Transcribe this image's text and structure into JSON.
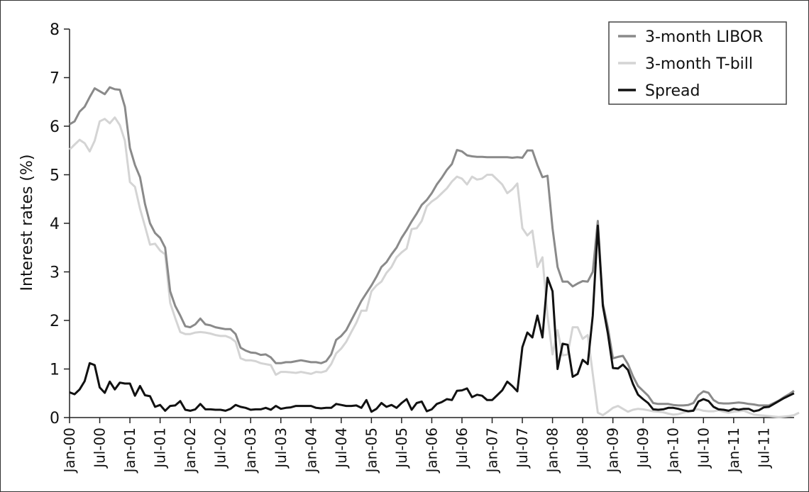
{
  "chart_data": {
    "type": "line",
    "title": "",
    "xlabel": "",
    "ylabel": "Interest rates (%)",
    "ylim": [
      0,
      8
    ],
    "yticks": [
      0,
      1,
      2,
      3,
      4,
      5,
      6,
      7,
      8
    ],
    "x_start": "Jan-00",
    "x_end": "Dec-11",
    "x_tick_labels": [
      "Jan-00",
      "Jul-00",
      "Jan-01",
      "Jul-01",
      "Jan-02",
      "Jul-02",
      "Jan-03",
      "Jul-03",
      "Jan-04",
      "Jul-04",
      "Jan-05",
      "Jul-05",
      "Jan-06",
      "Jul-06",
      "Jan-07",
      "Jul-07",
      "Jan-08",
      "Jul-08",
      "Jan-09",
      "Jul-09",
      "Jan-10",
      "Jul-10",
      "Jan-11",
      "Jul-11"
    ],
    "grid": false,
    "legend_position": "top-right",
    "series": [
      {
        "name": "3-month LIBOR",
        "color": "#8a8a8a",
        "values": [
          6.04,
          6.1,
          6.3,
          6.4,
          6.6,
          6.78,
          6.72,
          6.66,
          6.8,
          6.76,
          6.75,
          6.4,
          5.55,
          5.2,
          4.95,
          4.4,
          4.0,
          3.8,
          3.7,
          3.5,
          2.6,
          2.3,
          2.1,
          1.88,
          1.86,
          1.92,
          2.04,
          1.92,
          1.9,
          1.86,
          1.84,
          1.82,
          1.82,
          1.72,
          1.44,
          1.38,
          1.34,
          1.33,
          1.29,
          1.3,
          1.24,
          1.12,
          1.12,
          1.14,
          1.14,
          1.16,
          1.18,
          1.16,
          1.14,
          1.14,
          1.12,
          1.16,
          1.3,
          1.6,
          1.68,
          1.8,
          2.0,
          2.2,
          2.4,
          2.56,
          2.72,
          2.9,
          3.1,
          3.2,
          3.36,
          3.5,
          3.7,
          3.86,
          4.04,
          4.2,
          4.38,
          4.48,
          4.62,
          4.8,
          4.94,
          5.1,
          5.22,
          5.51,
          5.48,
          5.4,
          5.38,
          5.37,
          5.37,
          5.36,
          5.36,
          5.36,
          5.36,
          5.36,
          5.35,
          5.36,
          5.35,
          5.5,
          5.5,
          5.2,
          4.95,
          4.98,
          3.9,
          3.1,
          2.8,
          2.8,
          2.7,
          2.76,
          2.81,
          2.8,
          3.0,
          4.05,
          2.35,
          1.85,
          1.22,
          1.25,
          1.27,
          1.1,
          0.85,
          0.65,
          0.55,
          0.45,
          0.3,
          0.28,
          0.28,
          0.28,
          0.26,
          0.25,
          0.25,
          0.26,
          0.3,
          0.46,
          0.54,
          0.51,
          0.36,
          0.3,
          0.29,
          0.29,
          0.3,
          0.31,
          0.3,
          0.28,
          0.27,
          0.25,
          0.25,
          0.25,
          0.3,
          0.35,
          0.42,
          0.48,
          0.55
        ]
      },
      {
        "name": "3-month T-bill",
        "color": "#d4d4d4",
        "values": [
          5.52,
          5.62,
          5.72,
          5.65,
          5.48,
          5.7,
          6.1,
          6.15,
          6.06,
          6.18,
          6.02,
          5.7,
          4.85,
          4.75,
          4.3,
          3.94,
          3.56,
          3.58,
          3.44,
          3.36,
          2.36,
          2.05,
          1.76,
          1.72,
          1.72,
          1.75,
          1.76,
          1.75,
          1.73,
          1.7,
          1.68,
          1.68,
          1.64,
          1.56,
          1.22,
          1.18,
          1.18,
          1.16,
          1.12,
          1.1,
          1.08,
          0.88,
          0.94,
          0.94,
          0.93,
          0.92,
          0.94,
          0.92,
          0.9,
          0.94,
          0.93,
          0.96,
          1.1,
          1.32,
          1.42,
          1.56,
          1.76,
          1.95,
          2.2,
          2.2,
          2.6,
          2.72,
          2.8,
          2.98,
          3.1,
          3.3,
          3.4,
          3.48,
          3.88,
          3.9,
          4.05,
          4.35,
          4.45,
          4.52,
          4.62,
          4.72,
          4.86,
          4.96,
          4.92,
          4.8,
          4.96,
          4.9,
          4.92,
          5.0,
          5.0,
          4.9,
          4.8,
          4.62,
          4.7,
          4.82,
          3.9,
          3.75,
          3.85,
          3.1,
          3.3,
          2.1,
          1.3,
          1.8,
          1.28,
          1.3,
          1.86,
          1.86,
          1.62,
          1.7,
          0.9,
          0.1,
          0.05,
          0.12,
          0.2,
          0.24,
          0.18,
          0.12,
          0.16,
          0.18,
          0.17,
          0.15,
          0.13,
          0.12,
          0.11,
          0.08,
          0.06,
          0.07,
          0.1,
          0.13,
          0.16,
          0.17,
          0.14,
          0.13,
          0.13,
          0.15,
          0.12,
          0.1,
          0.12,
          0.13,
          0.14,
          0.1,
          0.06,
          0.05,
          0.04,
          0.03,
          0.02,
          0.01,
          0.02,
          0.03,
          0.05,
          0.1
        ]
      },
      {
        "name": "Spread",
        "color": "#111111",
        "values": [
          0.52,
          0.48,
          0.58,
          0.75,
          1.12,
          1.08,
          0.62,
          0.51,
          0.74,
          0.58,
          0.72,
          0.7,
          0.7,
          0.45,
          0.65,
          0.46,
          0.44,
          0.22,
          0.26,
          0.14,
          0.24,
          0.25,
          0.34,
          0.16,
          0.14,
          0.17,
          0.28,
          0.17,
          0.17,
          0.16,
          0.16,
          0.14,
          0.18,
          0.26,
          0.22,
          0.2,
          0.16,
          0.17,
          0.17,
          0.2,
          0.16,
          0.24,
          0.18,
          0.2,
          0.21,
          0.24,
          0.24,
          0.24,
          0.24,
          0.2,
          0.19,
          0.2,
          0.2,
          0.28,
          0.26,
          0.24,
          0.24,
          0.25,
          0.2,
          0.36,
          0.12,
          0.18,
          0.3,
          0.22,
          0.26,
          0.2,
          0.3,
          0.38,
          0.16,
          0.3,
          0.33,
          0.13,
          0.17,
          0.28,
          0.32,
          0.38,
          0.36,
          0.55,
          0.56,
          0.6,
          0.42,
          0.47,
          0.45,
          0.36,
          0.36,
          0.46,
          0.56,
          0.74,
          0.65,
          0.54,
          1.45,
          1.75,
          1.65,
          2.1,
          1.65,
          2.88,
          2.6,
          1.0,
          1.52,
          1.5,
          0.84,
          0.9,
          1.19,
          1.1,
          2.1,
          3.95,
          2.3,
          1.73,
          1.02,
          1.01,
          1.09,
          0.98,
          0.69,
          0.47,
          0.38,
          0.3,
          0.17,
          0.16,
          0.17,
          0.2,
          0.2,
          0.18,
          0.15,
          0.13,
          0.14,
          0.33,
          0.38,
          0.34,
          0.22,
          0.17,
          0.16,
          0.14,
          0.18,
          0.16,
          0.18,
          0.18,
          0.13,
          0.15,
          0.21,
          0.22,
          0.28,
          0.34,
          0.4,
          0.45,
          0.5
        ]
      }
    ]
  }
}
